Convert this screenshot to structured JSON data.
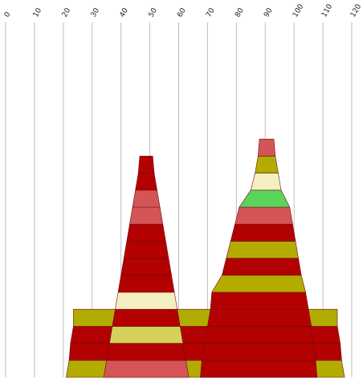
{
  "chart_data": {
    "type": "area",
    "title": "",
    "xlabel": "",
    "ylabel": "",
    "x_ticks": [
      0,
      10,
      20,
      30,
      40,
      50,
      60,
      70,
      80,
      90,
      100,
      110,
      120
    ],
    "xlim": [
      0,
      120
    ],
    "y_label_position": "top",
    "grid": "vertical",
    "colors": {
      "dark_red": "#b30000",
      "salmon": "#d45555",
      "cream": "#f3efc0",
      "khaki": "#d4d05a",
      "olive": "#b3ac00",
      "green": "#5ad45a"
    },
    "shapes": [
      {
        "name": "",
        "layers": [
          {
            "left": 21.0,
            "right": 117.5,
            "color": "olive"
          },
          {
            "left": 22.0,
            "right": 116.5,
            "color": "dark_red"
          },
          {
            "left": 22.5,
            "right": 116.0,
            "color": "dark_red"
          },
          {
            "left": 23.5,
            "right": 115.0,
            "color": "olive"
          }
        ]
      },
      {
        "name": "",
        "layers": [
          {
            "left": 34.0,
            "right": 63.5,
            "color": "salmon"
          },
          {
            "left": 35.0,
            "right": 62.5,
            "color": "dark_red"
          },
          {
            "left": 36.0,
            "right": 61.5,
            "color": "khaki"
          },
          {
            "left": 37.0,
            "right": 60.5,
            "color": "dark_red"
          },
          {
            "left": 38.0,
            "right": 59.5,
            "color": "cream"
          },
          {
            "left": 39.0,
            "right": 58.5,
            "color": "dark_red"
          },
          {
            "left": 40.0,
            "right": 57.5,
            "color": "dark_red"
          },
          {
            "left": 41.0,
            "right": 56.5,
            "color": "dark_red"
          },
          {
            "left": 42.0,
            "right": 55.5,
            "color": "dark_red"
          },
          {
            "left": 43.0,
            "right": 54.5,
            "color": "salmon"
          },
          {
            "left": 44.0,
            "right": 53.5,
            "color": "salmon"
          },
          {
            "left": 45.0,
            "right": 52.5,
            "color": "dark_red"
          },
          {
            "left": 46.0,
            "right": 51.5,
            "color": "dark_red"
          }
        ]
      },
      {
        "name": "",
        "layers": [
          {
            "left": 67.5,
            "right": 108.0,
            "color": "dark_red"
          },
          {
            "left": 68.0,
            "right": 107.5,
            "color": "dark_red"
          },
          {
            "left": 69.0,
            "right": 106.5,
            "color": "dark_red"
          },
          {
            "left": 70.0,
            "right": 106.0,
            "color": "dark_red"
          },
          {
            "left": 71.0,
            "right": 105.0,
            "color": "dark_red"
          },
          {
            "left": 71.5,
            "right": 104.0,
            "color": "olive"
          },
          {
            "left": 75.0,
            "right": 102.5,
            "color": "dark_red"
          },
          {
            "left": 76.5,
            "right": 101.5,
            "color": "olive"
          },
          {
            "left": 78.0,
            "right": 100.5,
            "color": "dark_red"
          },
          {
            "left": 79.5,
            "right": 99.5,
            "color": "salmon"
          },
          {
            "left": 81.0,
            "right": 98.5,
            "color": "green"
          },
          {
            "left": 85.0,
            "right": 95.5,
            "color": "cream"
          },
          {
            "left": 86.5,
            "right": 94.5,
            "color": "olive"
          },
          {
            "left": 87.5,
            "right": 93.5,
            "color": "salmon"
          }
        ]
      }
    ]
  }
}
